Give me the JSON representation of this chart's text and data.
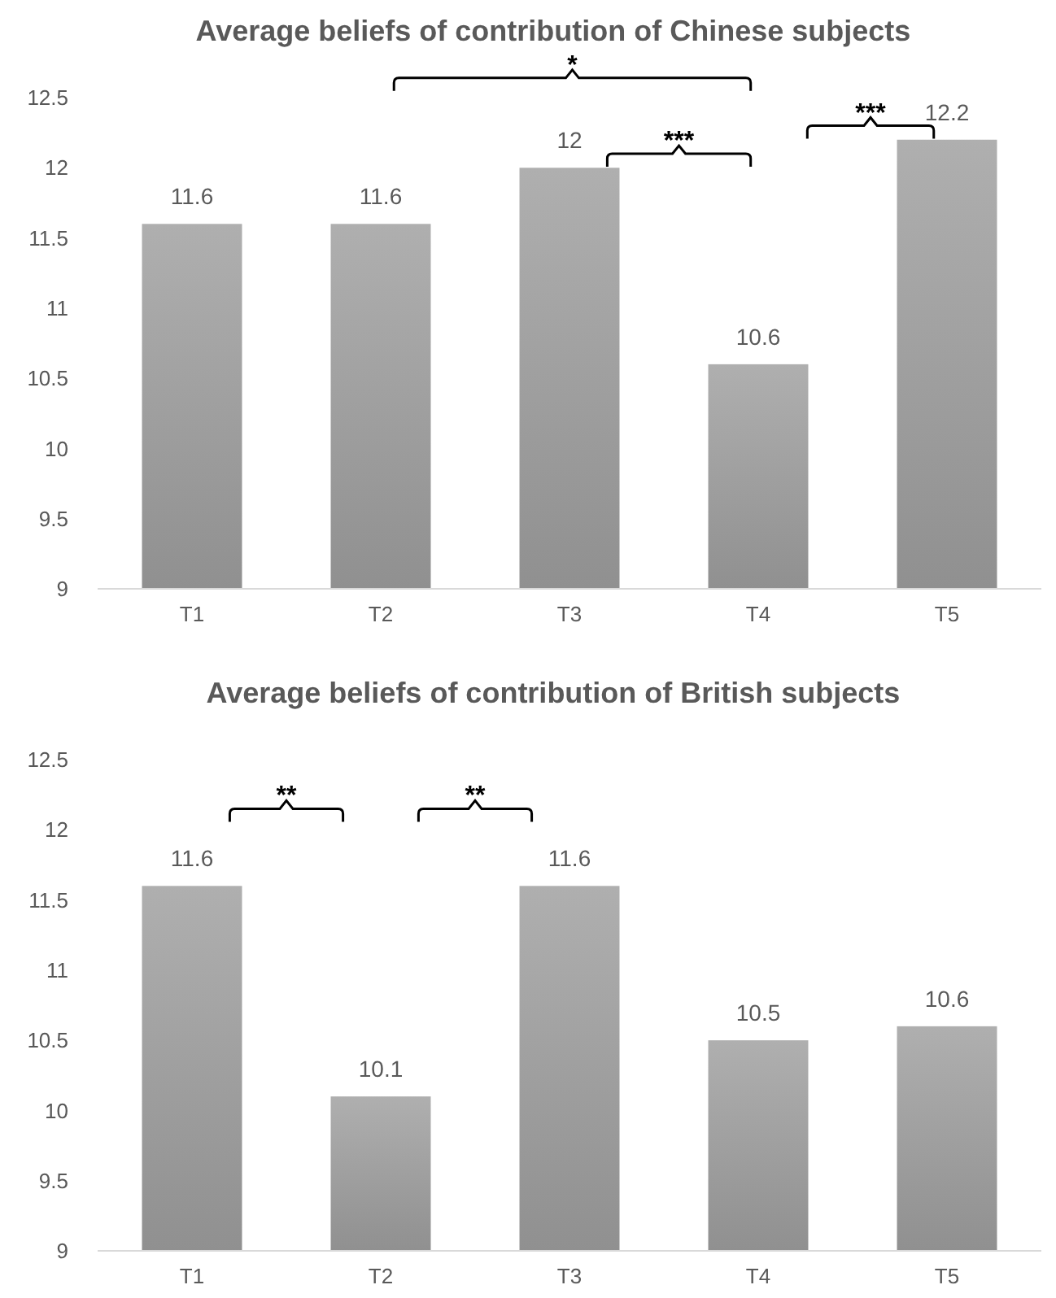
{
  "chart_data": [
    {
      "type": "bar",
      "title": "Average beliefs of contribution of Chinese subjects",
      "categories": [
        "T1",
        "T2",
        "T3",
        "T4",
        "T5"
      ],
      "values": [
        11.6,
        11.6,
        12,
        10.6,
        12.2
      ],
      "color": "#a6a6a6",
      "ylim": [
        9,
        12.5
      ],
      "yticks": [
        9,
        9.5,
        10,
        10.5,
        11,
        11.5,
        12,
        12.5
      ],
      "grid": false,
      "data_labels": true,
      "annotations": [
        "*",
        "***",
        "***"
      ]
    },
    {
      "type": "bar",
      "title": "Average beliefs of contribution of British subjects",
      "categories": [
        "T1",
        "T2",
        "T3",
        "T4",
        "T5"
      ],
      "values": [
        11.6,
        10.1,
        11.6,
        10.5,
        10.6
      ],
      "color": "#a6a6a6",
      "ylim": [
        9,
        12.5
      ],
      "yticks": [
        9,
        9.5,
        10,
        10.5,
        11,
        11.5,
        12,
        12.5
      ],
      "grid": false,
      "data_labels": true,
      "annotations": [
        "**",
        "**"
      ]
    }
  ]
}
